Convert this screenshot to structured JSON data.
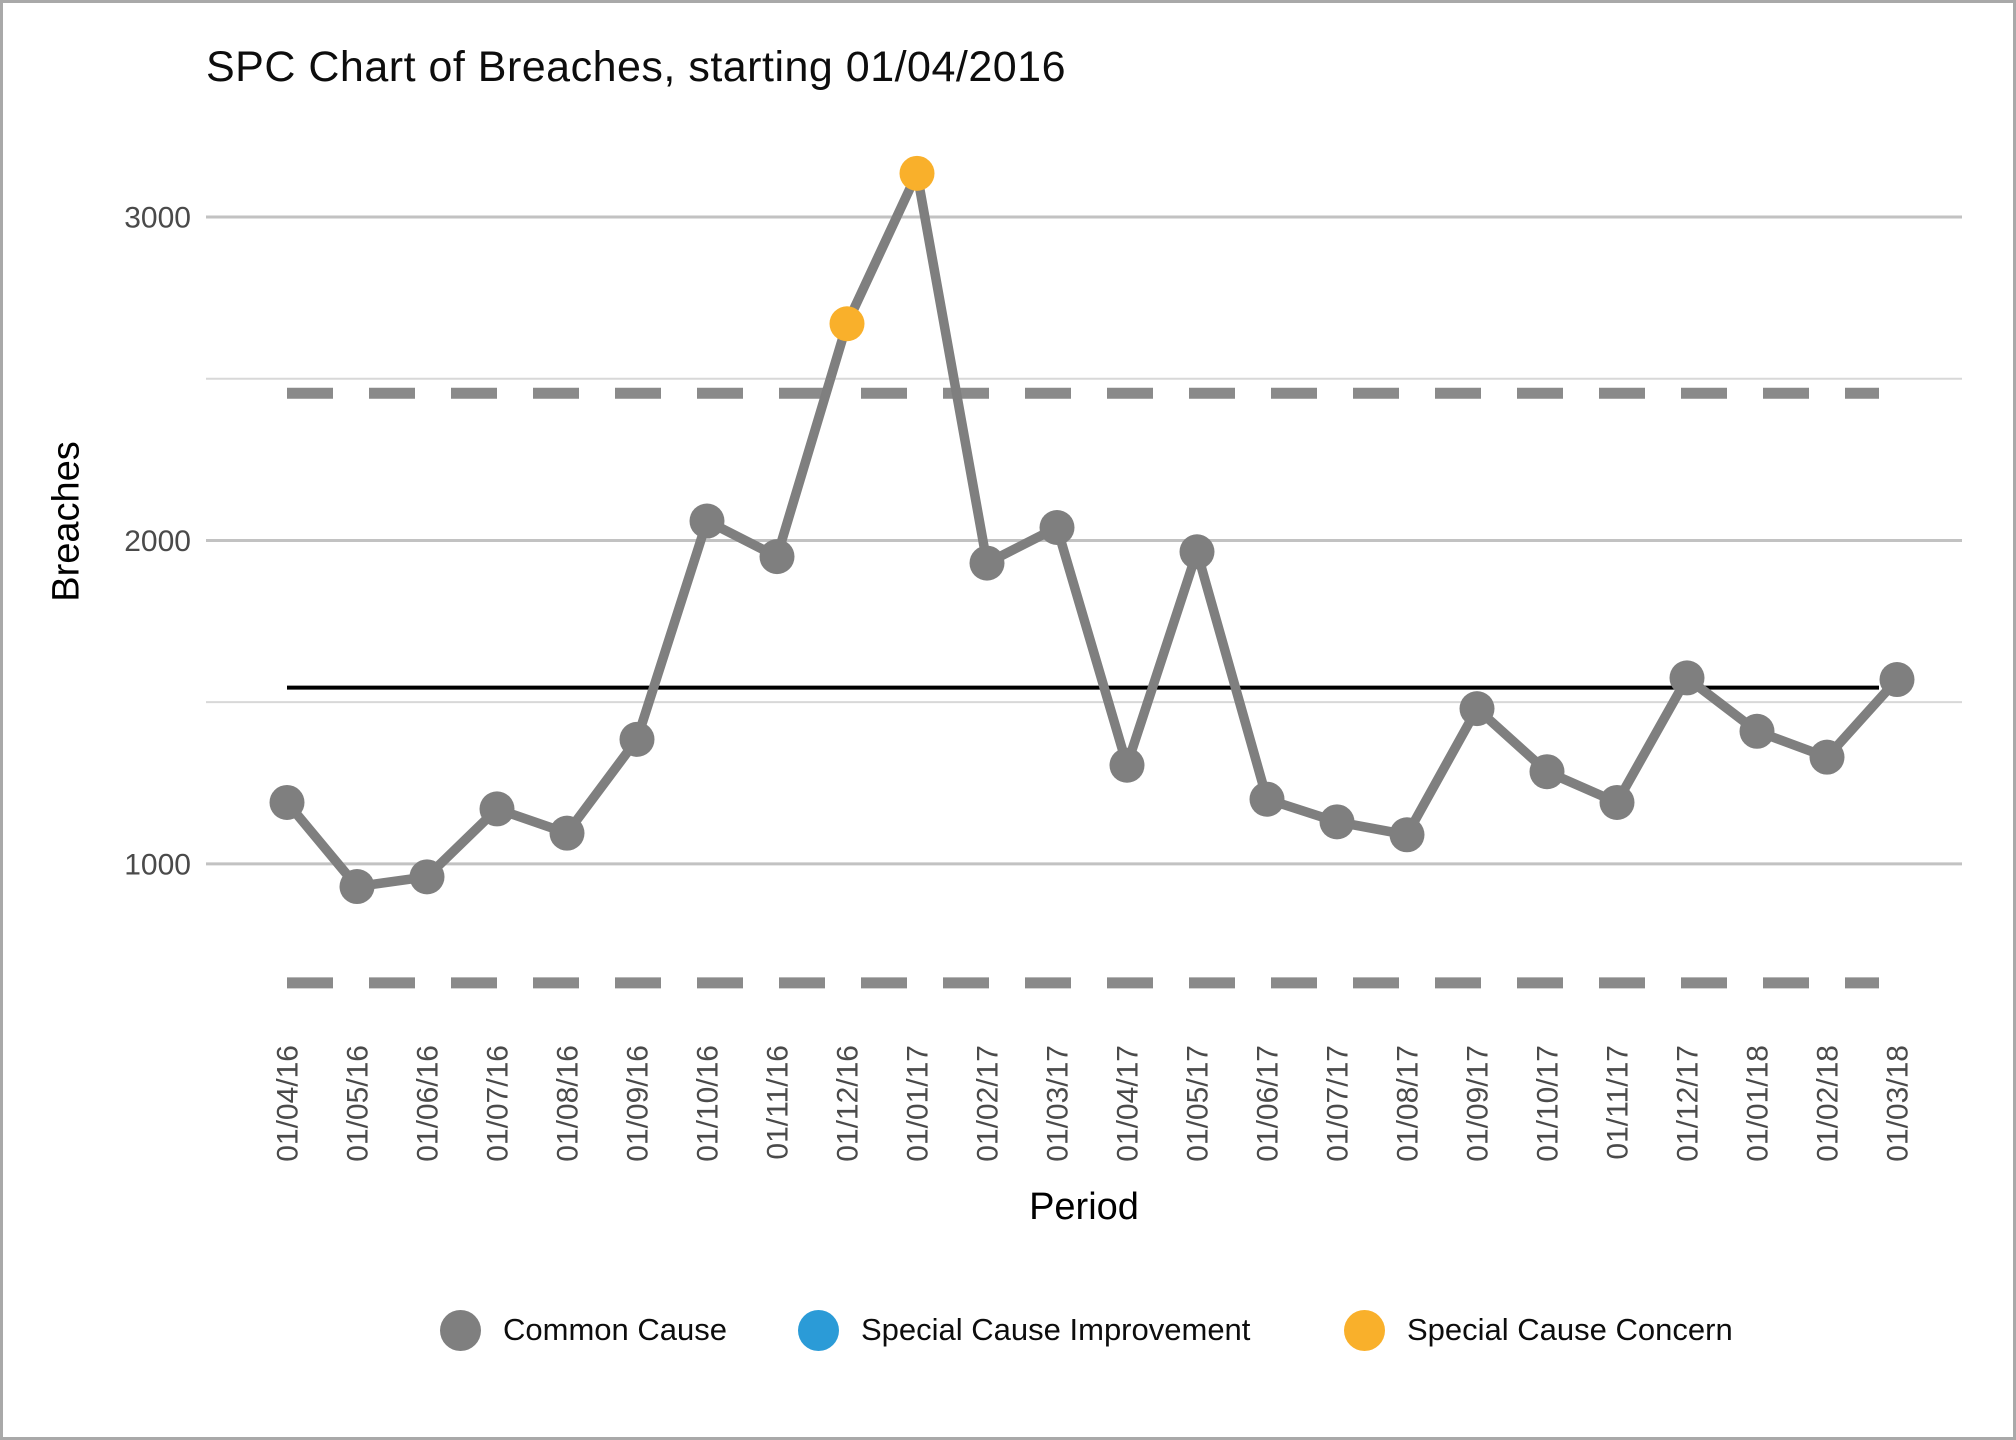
{
  "title": "SPC Chart of Breaches, starting 01/04/2016",
  "y_axis": {
    "title": "Breaches",
    "ticks": [
      3000,
      2000,
      1000
    ],
    "minor_gridlines": [
      2500,
      1500
    ]
  },
  "x_axis": {
    "title": "Period"
  },
  "legend": [
    {
      "key": "common",
      "label": "Common Cause",
      "color": "#7f7f7f"
    },
    {
      "key": "improvement",
      "label": "Special Cause Improvement",
      "color": "#2B9BD7"
    },
    {
      "key": "concern",
      "label": "Special Cause Concern",
      "color": "#F9B02B"
    }
  ],
  "chart_data": {
    "type": "line",
    "title": "SPC Chart of Breaches, starting 01/04/2016",
    "xlabel": "Period",
    "ylabel": "Breaches",
    "ylim": [
      600,
      3250
    ],
    "grid": "horizontal",
    "legend_position": "bottom",
    "categories": [
      "01/04/16",
      "01/05/16",
      "01/06/16",
      "01/07/16",
      "01/08/16",
      "01/09/16",
      "01/10/16",
      "01/11/16",
      "01/12/16",
      "01/01/17",
      "01/02/17",
      "01/03/17",
      "01/04/17",
      "01/05/17",
      "01/06/17",
      "01/07/17",
      "01/08/17",
      "01/09/17",
      "01/10/17",
      "01/11/17",
      "01/12/17",
      "01/01/18",
      "01/02/18",
      "01/03/18"
    ],
    "series": [
      {
        "name": "Breaches",
        "values": [
          1190,
          930,
          960,
          1170,
          1095,
          1385,
          2060,
          1950,
          2670,
          3135,
          1930,
          2040,
          1305,
          1965,
          1200,
          1130,
          1090,
          1480,
          1285,
          1190,
          1575,
          1410,
          1330,
          1570
        ],
        "point_types": [
          "common",
          "common",
          "common",
          "common",
          "common",
          "common",
          "common",
          "common",
          "concern",
          "concern",
          "common",
          "common",
          "common",
          "common",
          "common",
          "common",
          "common",
          "common",
          "common",
          "common",
          "common",
          "common",
          "common",
          "common"
        ]
      }
    ],
    "control_limits": {
      "upper": 2455,
      "center": 1545,
      "lower": 632,
      "upper_style": "dashed",
      "center_style": "solid",
      "lower_style": "dashed",
      "limit_color": "#8a8a8a",
      "center_color": "#000000"
    },
    "colors": {
      "common": "#7f7f7f",
      "improvement": "#2B9BD7",
      "concern": "#F9B02B",
      "line": "#7f7f7f"
    },
    "gridline_colors": {
      "major": "#c2c2c2",
      "minor": "#d8d8d8"
    },
    "axis_text_color": "#4a4a4a"
  }
}
